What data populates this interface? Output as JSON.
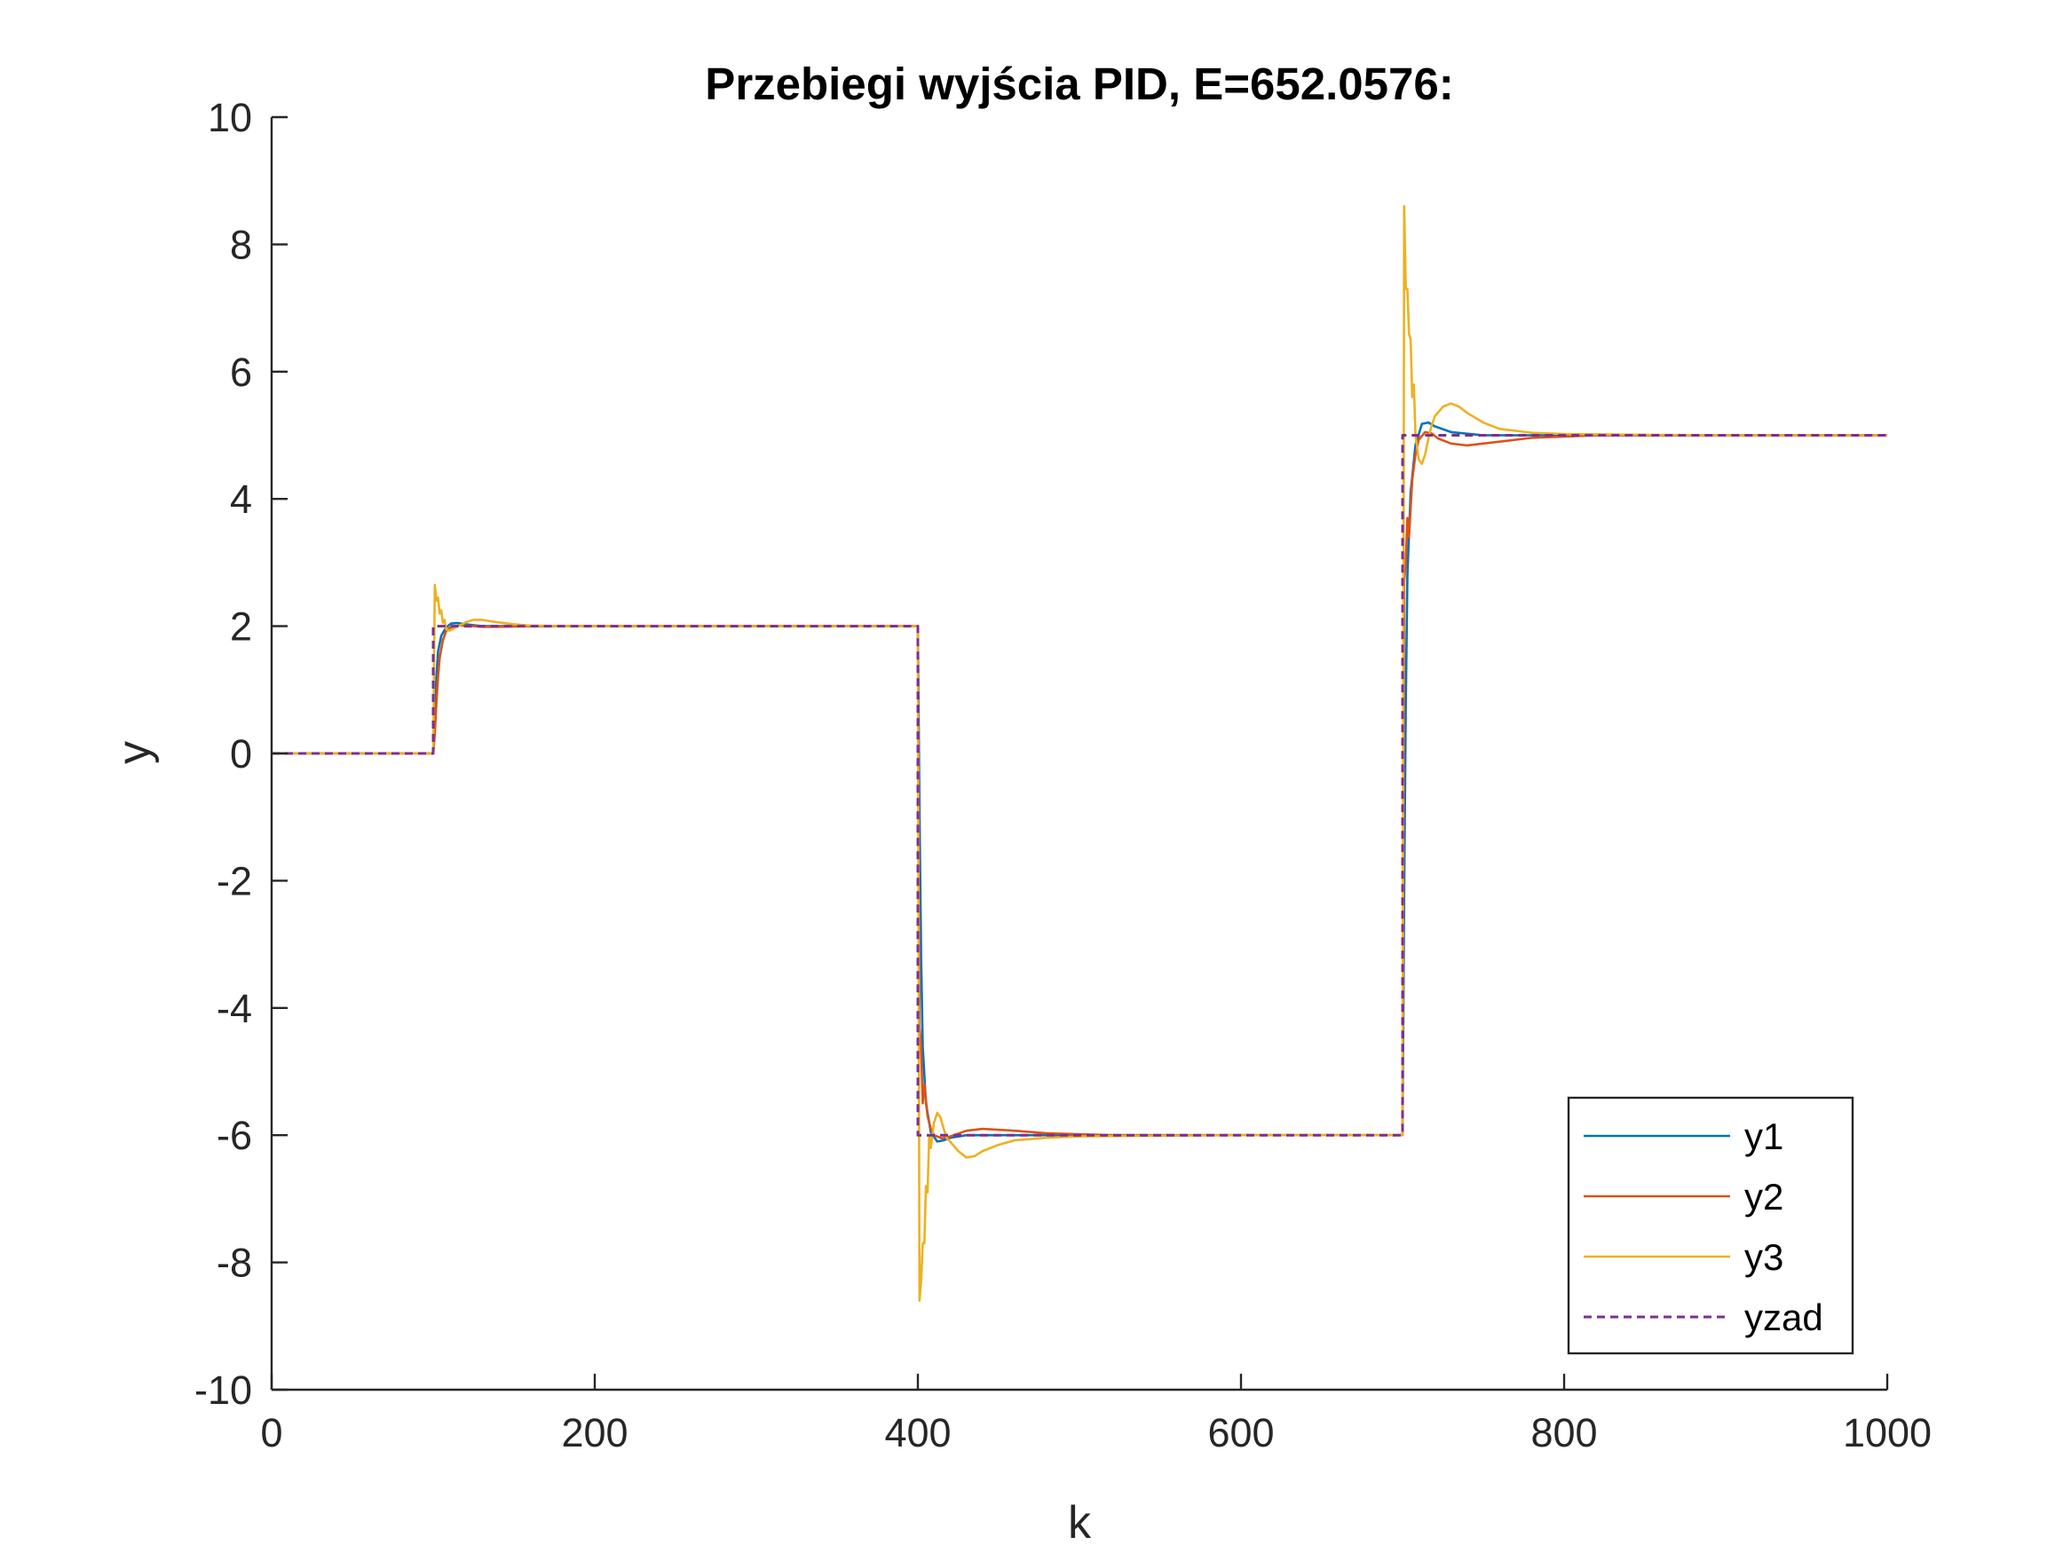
{
  "chart_data": {
    "type": "line",
    "title": "Przebiegi wyjścia PID, E=652.0576:",
    "xlabel": "k",
    "ylabel": "y",
    "xlim": [
      0,
      1000
    ],
    "ylim": [
      -10,
      10
    ],
    "xticks": [
      0,
      200,
      400,
      600,
      800,
      1000
    ],
    "xtick_labels": [
      "0",
      "200",
      "400",
      "600",
      "800",
      "1000"
    ],
    "yticks": [
      -10,
      -8,
      -6,
      -4,
      -2,
      0,
      2,
      4,
      6,
      8,
      10
    ],
    "ytick_labels": [
      "-10",
      "-8",
      "-6",
      "-4",
      "-2",
      "0",
      "2",
      "4",
      "6",
      "8",
      "10"
    ],
    "grid": false,
    "legend_position": "bottom-right",
    "series": [
      {
        "name": "y1",
        "color": "#0072BD",
        "style": "solid",
        "x": [
          0,
          100,
          101,
          102,
          103,
          105,
          108,
          111,
          115,
          120,
          130,
          150,
          200,
          400,
          401,
          402,
          403,
          405,
          408,
          412,
          416,
          420,
          430,
          450,
          500,
          700,
          701,
          702,
          703,
          705,
          708,
          712,
          716,
          720,
          730,
          750,
          800,
          1000
        ],
        "y": [
          0,
          0,
          0.55,
          1.2,
          1.6,
          1.85,
          1.98,
          2.04,
          2.05,
          2.03,
          2.0,
          2.0,
          2.0,
          2.0,
          -0.9,
          -3.2,
          -4.6,
          -5.5,
          -5.95,
          -6.1,
          -6.08,
          -6.04,
          -6.0,
          -6.0,
          -6.0,
          -6.0,
          -2.2,
          0.8,
          2.8,
          4.1,
          4.85,
          5.18,
          5.2,
          5.14,
          5.05,
          5.0,
          5.0,
          5.0
        ]
      },
      {
        "name": "y2",
        "color": "#D95319",
        "style": "solid",
        "x": [
          0,
          100,
          101,
          102,
          103,
          104,
          106,
          108,
          110,
          113,
          116,
          120,
          125,
          130,
          140,
          160,
          200,
          400,
          401,
          402,
          403,
          404,
          406,
          408,
          410,
          415,
          420,
          430,
          440,
          460,
          480,
          520,
          700,
          701,
          702,
          703,
          704,
          706,
          708,
          710,
          714,
          718,
          722,
          730,
          740,
          760,
          780,
          820,
          1000
        ],
        "y": [
          0,
          0,
          0.3,
          0.8,
          1.2,
          1.5,
          1.78,
          1.92,
          1.97,
          2.0,
          2.01,
          2.01,
          2.0,
          1.99,
          1.99,
          2.0,
          2.0,
          2.0,
          -4.3,
          -4.6,
          -5.5,
          -5.2,
          -5.7,
          -5.9,
          -6.0,
          -6.05,
          -6.02,
          -5.93,
          -5.9,
          -5.93,
          -5.97,
          -6.0,
          -6.0,
          2.7,
          3.0,
          3.7,
          3.4,
          4.3,
          4.7,
          4.93,
          5.05,
          5.03,
          4.95,
          4.87,
          4.84,
          4.9,
          4.96,
          5.0,
          5.0
        ]
      },
      {
        "name": "y3",
        "color": "#EDB120",
        "style": "solid",
        "x": [
          0,
          100,
          101,
          102,
          103,
          104,
          105,
          106,
          107,
          108,
          110,
          112,
          115,
          118,
          120,
          125,
          130,
          135,
          140,
          150,
          160,
          180,
          200,
          400,
          401,
          402,
          403,
          404,
          405,
          406,
          407,
          408,
          410,
          412,
          414,
          416,
          418,
          420,
          425,
          430,
          435,
          440,
          450,
          460,
          480,
          500,
          540,
          600,
          700,
          701,
          702,
          703,
          704,
          705,
          706,
          707,
          708,
          710,
          712,
          714,
          716,
          718,
          720,
          725,
          730,
          735,
          740,
          750,
          760,
          780,
          800,
          840,
          900,
          1000
        ],
        "y": [
          0,
          0,
          2.65,
          2.4,
          2.45,
          2.2,
          2.25,
          2.05,
          2.1,
          1.95,
          1.93,
          1.95,
          2.0,
          2.03,
          2.06,
          2.1,
          2.1,
          2.08,
          2.06,
          2.03,
          2.01,
          2.0,
          2.0,
          2.0,
          -8.6,
          -8.3,
          -7.7,
          -7.7,
          -6.8,
          -6.9,
          -6.0,
          -6.2,
          -5.8,
          -5.65,
          -5.72,
          -5.9,
          -6.05,
          -6.1,
          -6.25,
          -6.35,
          -6.33,
          -6.25,
          -6.15,
          -6.08,
          -6.04,
          -6.02,
          -6.01,
          -6.0,
          -6.0,
          8.6,
          7.3,
          7.3,
          6.6,
          6.5,
          5.6,
          5.8,
          5.0,
          4.62,
          4.55,
          4.7,
          4.95,
          5.15,
          5.3,
          5.45,
          5.5,
          5.45,
          5.35,
          5.2,
          5.1,
          5.04,
          5.02,
          5.01,
          5.0,
          5.0
        ]
      },
      {
        "name": "yzad",
        "color": "#7E2F8E",
        "style": "dashed",
        "x": [
          0,
          100,
          100,
          400,
          400,
          700,
          700,
          1000
        ],
        "y": [
          0,
          0,
          2,
          2,
          -6,
          -6,
          5,
          5
        ]
      }
    ]
  }
}
